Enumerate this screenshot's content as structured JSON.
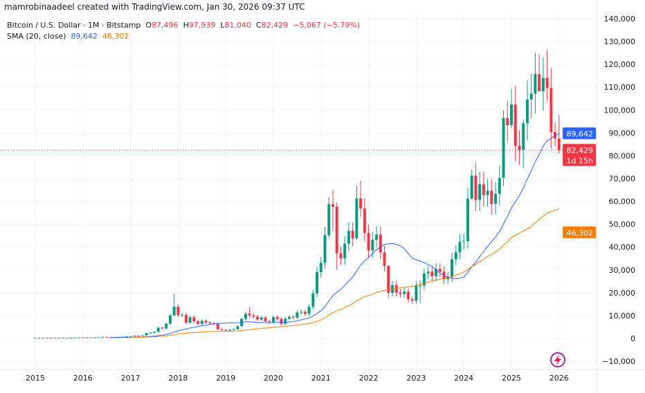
{
  "credit": "mamrobinaadeel created with TradingView.com, Jan 30, 2026 09:37 UTC",
  "legend": {
    "symbol": "Bitcoin / U.S. Dollar · 1M · Bitstamp",
    "o_label": "O",
    "o": "87,496",
    "h_label": "H",
    "h": "97,939",
    "l_label": "L",
    "l": "81,040",
    "c_label": "C",
    "c": "82,429",
    "change": "−5,067 (−5.79%)",
    "sma_label": "SMA (20, close)",
    "sma1": "89,642",
    "sma2": "46,302"
  },
  "badges": {
    "sma1": "89,642",
    "price": "82,429",
    "countdown": "1d 15h",
    "sma2": "46,302"
  },
  "colors": {
    "up": "#089981",
    "down": "#f23645",
    "sma1": "#2962ff",
    "sma2": "#f57c00"
  },
  "chart_data": {
    "type": "candlestick",
    "interval": "1M",
    "start": "2015-01",
    "ylim": [
      -15000,
      142000
    ],
    "yticks": [
      -10000,
      0,
      10000,
      20000,
      30000,
      40000,
      50000,
      60000,
      70000,
      80000,
      90000,
      100000,
      110000,
      120000,
      130000,
      140000
    ],
    "ytick_labels": [
      "−10,000",
      "0",
      "10,000",
      "20,000",
      "30,000",
      "40,000",
      "50,000",
      "60,000",
      "70,000",
      "80,000",
      "90,000",
      "100,000",
      "110,000",
      "120,000",
      "130,000",
      "140,000"
    ],
    "xticks": [
      "2015",
      "2016",
      "2017",
      "2018",
      "2019",
      "2020",
      "2021",
      "2022",
      "2023",
      "2024",
      "2025",
      "2026"
    ],
    "closes": [
      217,
      254,
      244,
      236,
      230,
      263,
      284,
      230,
      236,
      314,
      377,
      430,
      368,
      437,
      416,
      448,
      531,
      673,
      624,
      573,
      609,
      700,
      742,
      963,
      970,
      1190,
      1080,
      1348,
      2300,
      2480,
      2875,
      4700,
      4340,
      6450,
      10000,
      13860,
      10200,
      10330,
      6930,
      9240,
      7500,
      6390,
      7730,
      7030,
      6630,
      6370,
      4040,
      3740,
      3460,
      3800,
      4100,
      5320,
      8560,
      10820,
      10080,
      9600,
      8300,
      9150,
      7550,
      7190,
      9350,
      8540,
      6420,
      8630,
      9450,
      9140,
      11350,
      11650,
      10780,
      13800,
      19700,
      28990,
      33100,
      45200,
      58800,
      57700,
      37300,
      35040,
      41500,
      47100,
      43800,
      61300,
      56900,
      46200,
      38500,
      43200,
      45500,
      37700,
      31800,
      19950,
      23300,
      20050,
      19430,
      20500,
      17170,
      16540,
      23130,
      23150,
      28470,
      29250,
      27220,
      30470,
      29230,
      25940,
      26970,
      34650,
      37720,
      42280,
      42580,
      61180,
      71330,
      60650,
      67530,
      62750,
      64620,
      58970,
      63330,
      70290,
      96450,
      93430,
      102400,
      84350,
      82550,
      94200,
      104600,
      107150,
      115750,
      108250,
      114050,
      109600,
      90400,
      87496,
      82429
    ],
    "wick_overrides": {
      "35": [
        19666,
        10900
      ],
      "52": [
        9100,
        5300
      ],
      "54": [
        13800,
        9100
      ],
      "74": [
        61700,
        44000
      ],
      "75": [
        64900,
        47000
      ],
      "76": [
        59500,
        30000
      ],
      "81": [
        67000,
        43300
      ],
      "82": [
        69000,
        53300
      ],
      "89": [
        31900,
        17600
      ],
      "97": [
        25300,
        15500
      ],
      "110": [
        73800,
        60800
      ],
      "118": [
        99800,
        66800
      ],
      "120": [
        109300,
        92000
      ],
      "123": [
        95800,
        74500
      ],
      "127": [
        124400,
        108000
      ],
      "129": [
        126200,
        104000
      ],
      "131": [
        94600,
        84000
      ],
      "132": [
        97939,
        81040
      ]
    }
  }
}
